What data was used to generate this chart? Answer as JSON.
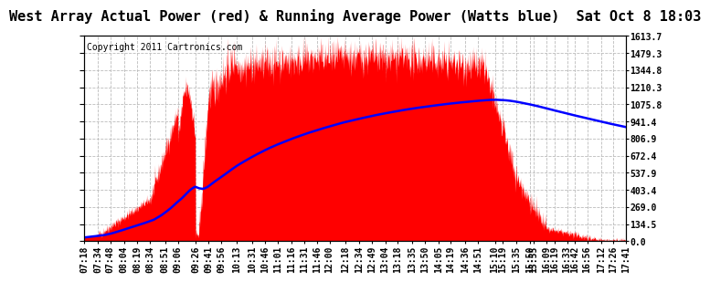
{
  "title": "West Array Actual Power (red) & Running Average Power (Watts blue)  Sat Oct 8 18:03",
  "copyright": "Copyright 2011 Cartronics.com",
  "ylabel_right": [
    "1613.7",
    "1479.3",
    "1344.8",
    "1210.3",
    "1075.8",
    "941.4",
    "806.9",
    "672.4",
    "537.9",
    "403.4",
    "269.0",
    "134.5",
    "0.0"
  ],
  "y_max": 1613.7,
  "y_min": 0.0,
  "fill_color": "red",
  "line_color": "blue",
  "bg_color": "white",
  "grid_color": "#bbbbbb",
  "x_labels": [
    "07:18",
    "07:34",
    "07:48",
    "08:04",
    "08:19",
    "08:34",
    "08:51",
    "09:06",
    "09:26",
    "09:41",
    "09:56",
    "10:13",
    "10:31",
    "10:46",
    "11:01",
    "11:16",
    "11:31",
    "11:46",
    "12:00",
    "12:18",
    "12:34",
    "12:49",
    "13:04",
    "13:18",
    "13:35",
    "13:50",
    "14:05",
    "14:19",
    "14:36",
    "14:51",
    "15:10",
    "15:19",
    "15:35",
    "15:50",
    "15:55",
    "16:09",
    "16:19",
    "16:33",
    "16:42",
    "16:56",
    "17:12",
    "17:26",
    "17:41"
  ],
  "title_fontsize": 11,
  "tick_fontsize": 7,
  "copyright_fontsize": 7
}
